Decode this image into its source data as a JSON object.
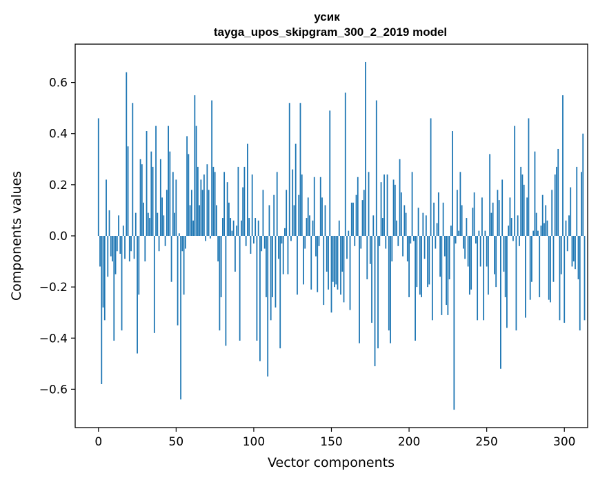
{
  "chart_data": {
    "type": "bar",
    "title_line1": "усик",
    "title_line2": "tayga_upos_skipgram_300_2_2019 model",
    "xlabel": "Vector components",
    "ylabel": "Components values",
    "xlim": [
      -15,
      315
    ],
    "ylim": [
      -0.75,
      0.75
    ],
    "x_ticks": [
      0,
      50,
      100,
      150,
      200,
      250,
      300
    ],
    "x_tick_labels": [
      "0",
      "50",
      "100",
      "150",
      "200",
      "250",
      "300"
    ],
    "y_ticks": [
      -0.6,
      -0.4,
      -0.2,
      0.0,
      0.2,
      0.4,
      0.6
    ],
    "y_tick_labels": [
      "−0.6",
      "−0.4",
      "−0.2",
      "0.0",
      "0.2",
      "0.4",
      "0.6"
    ],
    "bar_color": "#1f77b4",
    "grid": false,
    "values": [
      0.46,
      -0.12,
      -0.58,
      -0.28,
      -0.33,
      0.22,
      -0.16,
      0.1,
      -0.08,
      -0.1,
      -0.41,
      -0.15,
      -0.06,
      0.08,
      -0.07,
      -0.37,
      0.04,
      -0.09,
      0.64,
      0.35,
      -0.1,
      -0.06,
      0.52,
      -0.09,
      0.09,
      -0.46,
      -0.23,
      0.3,
      0.28,
      0.13,
      -0.1,
      0.41,
      0.09,
      0.07,
      0.33,
      0.27,
      -0.38,
      0.43,
      0.09,
      -0.06,
      0.3,
      0.15,
      0.08,
      -0.04,
      0.18,
      0.43,
      0.33,
      -0.18,
      0.25,
      0.09,
      0.22,
      -0.35,
      0.01,
      -0.64,
      -0.06,
      -0.23,
      -0.05,
      0.39,
      0.32,
      0.12,
      0.18,
      0.06,
      0.55,
      0.43,
      0.27,
      0.12,
      0.22,
      0.18,
      0.24,
      -0.02,
      0.28,
      0.18,
      -0.01,
      0.53,
      0.27,
      0.25,
      0.12,
      -0.1,
      -0.37,
      -0.24,
      0.07,
      0.25,
      -0.43,
      0.21,
      0.13,
      0.07,
      0.02,
      0.06,
      -0.14,
      0.04,
      0.27,
      -0.41,
      0.06,
      0.19,
      0.27,
      -0.04,
      0.36,
      0.07,
      -0.07,
      0.24,
      -0.03,
      0.07,
      -0.41,
      0.06,
      -0.49,
      -0.06,
      0.18,
      -0.05,
      -0.24,
      -0.55,
      0.12,
      -0.33,
      -0.24,
      0.16,
      -0.28,
      0.25,
      -0.09,
      -0.44,
      -0.03,
      -0.15,
      0.03,
      0.18,
      -0.15,
      0.52,
      -0.02,
      0.26,
      0.12,
      0.36,
      -0.23,
      0.16,
      0.52,
      0.24,
      -0.19,
      -0.05,
      0.07,
      0.15,
      0.08,
      -0.21,
      0.06,
      0.23,
      -0.08,
      -0.22,
      -0.04,
      0.23,
      0.15,
      -0.27,
      0.12,
      -0.14,
      -0.21,
      0.49,
      -0.3,
      -0.18,
      -0.2,
      -0.19,
      -0.21,
      0.06,
      -0.23,
      -0.14,
      -0.26,
      0.56,
      -0.09,
      0.02,
      -0.29,
      0.13,
      0.13,
      -0.04,
      0.16,
      0.23,
      -0.42,
      -0.05,
      0.14,
      0.18,
      0.68,
      -0.17,
      0.25,
      -0.11,
      -0.34,
      0.08,
      -0.51,
      0.53,
      -0.44,
      -0.04,
      0.21,
      0.07,
      0.24,
      -0.05,
      0.24,
      -0.37,
      -0.42,
      -0.1,
      0.22,
      0.2,
      0.06,
      -0.04,
      0.3,
      0.17,
      -0.08,
      0.12,
      0.09,
      -0.1,
      -0.24,
      -0.03,
      0.25,
      -0.02,
      -0.41,
      -0.2,
      0.11,
      -0.23,
      -0.24,
      0.09,
      -0.09,
      0.08,
      -0.2,
      -0.19,
      0.46,
      -0.33,
      0.13,
      -0.05,
      0.05,
      0.17,
      -0.16,
      -0.31,
      0.13,
      -0.08,
      -0.27,
      -0.31,
      -0.17,
      0.04,
      0.41,
      -0.68,
      -0.03,
      0.18,
      0.02,
      0.25,
      0.12,
      -0.05,
      -0.09,
      0.07,
      -0.12,
      -0.23,
      -0.21,
      0.11,
      0.17,
      -0.03,
      -0.33,
      0.02,
      -0.12,
      0.15,
      -0.33,
      0.02,
      -0.12,
      -0.23,
      0.32,
      0.09,
      0.13,
      -0.15,
      -0.2,
      0.18,
      0.14,
      -0.52,
      0.22,
      -0.14,
      -0.24,
      -0.36,
      0.04,
      0.15,
      0.07,
      -0.02,
      0.43,
      -0.37,
      0.08,
      -0.04,
      0.27,
      0.24,
      0.2,
      -0.32,
      0.15,
      0.46,
      -0.25,
      -0.18,
      0.02,
      0.33,
      0.09,
      0.02,
      -0.24,
      0.04,
      0.16,
      0.05,
      0.12,
      0.06,
      -0.25,
      -0.26,
      0.18,
      -0.18,
      0.24,
      0.27,
      0.34,
      -0.33,
      -0.15,
      0.55,
      -0.34,
      0.06,
      -0.06,
      0.08,
      0.19,
      -0.12,
      -0.1,
      -0.13,
      0.27,
      -0.17,
      -0.37,
      0.25,
      0.4,
      -0.33
    ]
  }
}
